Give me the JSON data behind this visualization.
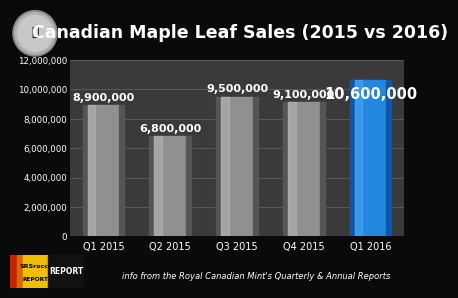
{
  "categories": [
    "Q1 2015",
    "Q2 2015",
    "Q3 2015",
    "Q4 2015",
    "Q1 2016"
  ],
  "values": [
    8900000,
    6800000,
    9500000,
    9100000,
    10600000
  ],
  "bar_colors_gray": [
    "#909090",
    "#909090",
    "#909090",
    "#909090"
  ],
  "bar_color_blue": "#2288dd",
  "title": "Canadian Maple Leaf Sales (2015 vs 2016)",
  "title_fontsize": 12.5,
  "title_color": "white",
  "background_color": "#0a0a0a",
  "plot_bg_color": "#3a3a3a",
  "plot_bg_dark": "#222222",
  "tick_color": "white",
  "ylim": [
    0,
    12000000
  ],
  "yticks": [
    0,
    2000000,
    4000000,
    6000000,
    8000000,
    10000000,
    12000000
  ],
  "ytick_labels": [
    "0",
    "2,000,000",
    "4,000,000",
    "6,000,000",
    "8,000,000",
    "10,000,000",
    "12,000,000"
  ],
  "footer_text": "info from the Royal Canadian Mint's Quarterly & Annual Reports",
  "footer_color": "white",
  "footer_fontsize": 6.0,
  "label_fontsize": 8.0,
  "label_color": "white",
  "grid_color": "#666666",
  "logo_yellow": "#f0c000",
  "logo_bg": "#1a1a1a"
}
